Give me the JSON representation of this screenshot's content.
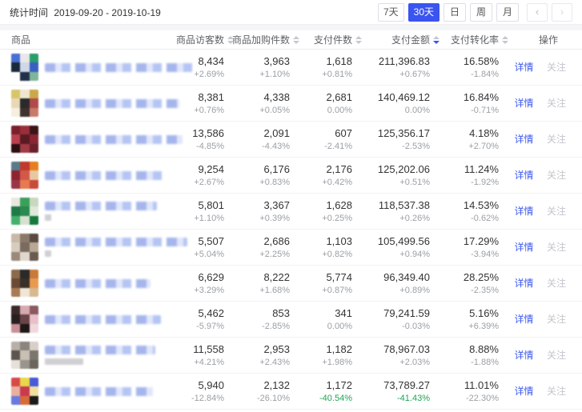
{
  "toolbar": {
    "stat_time_label": "统计时间",
    "date_range": "2019-09-20 - 2019-10-19",
    "range_buttons": [
      {
        "label": "7天",
        "active": false
      },
      {
        "label": "30天",
        "active": true
      },
      {
        "label": "日",
        "active": false
      },
      {
        "label": "周",
        "active": false
      },
      {
        "label": "月",
        "active": false
      }
    ],
    "prev_icon": "‹",
    "next_icon": "›",
    "active_color": "#3a54f0"
  },
  "table": {
    "columns": [
      "商品",
      "商品访客数",
      "商品加购件数",
      "支付件数",
      "支付金额",
      "支付转化率",
      "操作"
    ],
    "sorted_column": "支付金额",
    "sort_order": "desc",
    "actions": {
      "detail": "详情",
      "follow": "关注"
    },
    "colors": {
      "link": "#3d5af1",
      "positive_green": "#21a353",
      "value": "#333333",
      "change": "#9aa0a6"
    },
    "rows": [
      {
        "visitors": "8,434",
        "visitors_chg": "+2.69%",
        "cart": "3,963",
        "cart_chg": "+1.10%",
        "pay_count": "1,618",
        "pay_count_chg": "+0.81%",
        "amount": "211,396.83",
        "amount_chg": "+0.67%",
        "conversion": "16.58%",
        "conversion_chg": "-1.84%",
        "green": [],
        "name_width": 185,
        "thumb_colors": [
          "#4a6fd4",
          "#e8e8e8",
          "#2a9d6e",
          "#1a2a3a",
          "#cfd8e8",
          "#3a5fbf",
          "#ffffff",
          "#22314a",
          "#7fb69a"
        ]
      },
      {
        "visitors": "8,381",
        "visitors_chg": "+0.76%",
        "cart": "4,338",
        "cart_chg": "+0.05%",
        "pay_count": "2,681",
        "pay_count_chg": "0.00%",
        "amount": "140,469.12",
        "amount_chg": "0.00%",
        "conversion": "16.84%",
        "conversion_chg": "-0.71%",
        "green": [],
        "name_width": 168,
        "thumb_colors": [
          "#d8c56a",
          "#efe6cf",
          "#caa84a",
          "#e8d8b8",
          "#2a2a2a",
          "#b24a4a",
          "#f5efdf",
          "#403030",
          "#c87a6a"
        ]
      },
      {
        "visitors": "13,586",
        "visitors_chg": "-4.85%",
        "cart": "2,091",
        "cart_chg": "-4.43%",
        "pay_count": "607",
        "pay_count_chg": "-2.41%",
        "amount": "125,356.17",
        "amount_chg": "-2.53%",
        "conversion": "4.18%",
        "conversion_chg": "+2.70%",
        "green": [],
        "name_width": 172,
        "thumb_colors": [
          "#7a1f2b",
          "#9a2f3b",
          "#3a1518",
          "#b8404f",
          "#5a1a22",
          "#8a2533",
          "#2a1012",
          "#a03a45",
          "#6a202a"
        ]
      },
      {
        "visitors": "9,254",
        "visitors_chg": "+2.67%",
        "cart": "6,176",
        "cart_chg": "+0.83%",
        "pay_count": "2,176",
        "pay_count_chg": "+0.42%",
        "amount": "125,202.06",
        "amount_chg": "+0.51%",
        "conversion": "11.24%",
        "conversion_chg": "-1.92%",
        "green": [],
        "name_width": 150,
        "thumb_colors": [
          "#5a7a8a",
          "#c0392b",
          "#e67e22",
          "#8e2430",
          "#d4584a",
          "#e8c8a0",
          "#9a3545",
          "#e87a50",
          "#c84a3a"
        ]
      },
      {
        "visitors": "5,801",
        "visitors_chg": "+1.10%",
        "cart": "3,367",
        "cart_chg": "+0.39%",
        "pay_count": "1,628",
        "pay_count_chg": "+0.25%",
        "amount": "118,537.38",
        "amount_chg": "+0.26%",
        "conversion": "14.53%",
        "conversion_chg": "-0.62%",
        "green": [],
        "name_width": 140,
        "line2_width": 8,
        "thumb_colors": [
          "#e8e8e0",
          "#3aa05a",
          "#c8d8c0",
          "#1f7a45",
          "#2a8a4f",
          "#e0e8d8",
          "#45b06a",
          "#d8e0d0",
          "#167a3f"
        ]
      },
      {
        "visitors": "5,507",
        "visitors_chg": "+5.04%",
        "cart": "2,686",
        "cart_chg": "+2.25%",
        "pay_count": "1,103",
        "pay_count_chg": "+0.82%",
        "amount": "105,499.56",
        "amount_chg": "+0.94%",
        "conversion": "17.29%",
        "conversion_chg": "-3.94%",
        "green": [],
        "name_width": 178,
        "line2_width": 8,
        "thumb_colors": [
          "#c8b8a8",
          "#8a7a6a",
          "#5a4a42",
          "#d8ccc0",
          "#7a6a5f",
          "#b8a895",
          "#9a8878",
          "#e0d8cc",
          "#6a5a50"
        ]
      },
      {
        "visitors": "6,629",
        "visitors_chg": "+3.29%",
        "cart": "8,222",
        "cart_chg": "+1.68%",
        "pay_count": "5,774",
        "pay_count_chg": "+0.87%",
        "amount": "96,349.40",
        "amount_chg": "+0.89%",
        "conversion": "28.25%",
        "conversion_chg": "-2.35%",
        "green": [],
        "name_width": 132,
        "thumb_colors": [
          "#8a6a4a",
          "#2a2a2a",
          "#c87a3a",
          "#6a4a35",
          "#3a3028",
          "#e89a50",
          "#a87a55",
          "#efe6d5",
          "#d8b890"
        ]
      },
      {
        "visitors": "5,462",
        "visitors_chg": "-5.97%",
        "cart": "853",
        "cart_chg": "-2.85%",
        "pay_count": "341",
        "pay_count_chg": "0.00%",
        "amount": "79,241.59",
        "amount_chg": "-0.03%",
        "conversion": "5.16%",
        "conversion_chg": "+6.39%",
        "green": [],
        "name_width": 145,
        "thumb_colors": [
          "#3a2a2a",
          "#d8a8b0",
          "#8a5a60",
          "#2a1f1f",
          "#6a4548",
          "#e8c0c8",
          "#c89098",
          "#1f1616",
          "#f0d8dc"
        ]
      },
      {
        "visitors": "11,558",
        "visitors_chg": "+4.21%",
        "cart": "2,953",
        "cart_chg": "+2.43%",
        "pay_count": "1,182",
        "pay_count_chg": "+1.98%",
        "amount": "78,967.03",
        "amount_chg": "+2.03%",
        "conversion": "8.88%",
        "conversion_chg": "-1.88%",
        "green": [],
        "name_width": 138,
        "line2_width": 48,
        "thumb_colors": [
          "#b8b0a8",
          "#8a857d",
          "#d8d0c8",
          "#5a554f",
          "#c8c0b5",
          "#7a756d",
          "#e5e0d8",
          "#9a958c",
          "#6a655d"
        ]
      },
      {
        "visitors": "5,940",
        "visitors_chg": "-12.84%",
        "cart": "2,132",
        "cart_chg": "-26.10%",
        "pay_count": "1,172",
        "pay_count_chg": "-40.54%",
        "amount": "73,789.27",
        "amount_chg": "-41.43%",
        "conversion": "11.01%",
        "conversion_chg": "-22.30%",
        "green": [
          "pay_count_chg",
          "amount_chg"
        ],
        "name_width": 135,
        "thumb_colors": [
          "#d84a4a",
          "#e8d84a",
          "#4a5ad8",
          "#e8b0a0",
          "#c83a50",
          "#f0e0a0",
          "#6a7ae0",
          "#d86a3a",
          "#1a1a1a"
        ]
      }
    ]
  }
}
